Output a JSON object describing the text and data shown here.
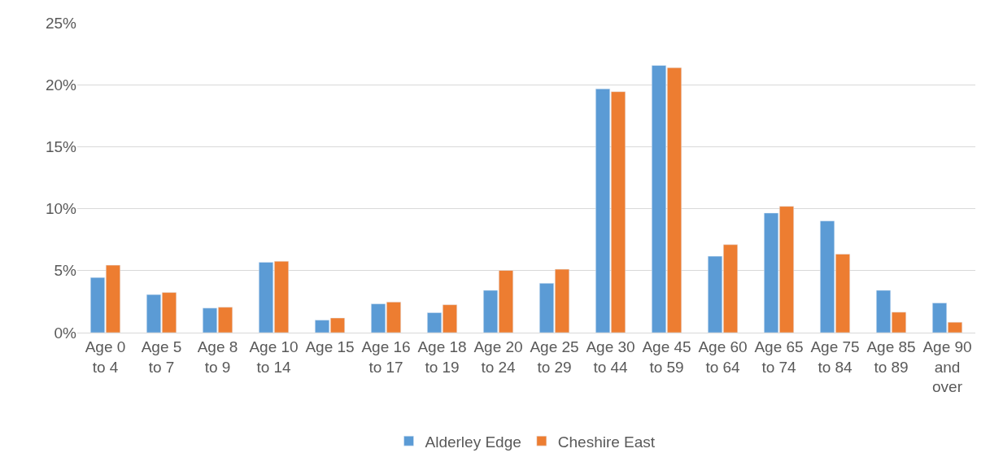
{
  "chart_data": {
    "type": "bar",
    "categories": [
      "Age 0 to 4",
      "Age 5 to 7",
      "Age 8 to 9",
      "Age 10 to 14",
      "Age 15",
      "Age 16 to 17",
      "Age 18 to 19",
      "Age 20 to 24",
      "Age 25 to 29",
      "Age 30 to 44",
      "Age 45 to 59",
      "Age 60 to 64",
      "Age 65 to 74",
      "Age 75 to 84",
      "Age 85 to 89",
      "Age 90 and over"
    ],
    "series": [
      {
        "name": "Alderley Edge",
        "color": "#5b9bd5",
        "values": [
          4.45,
          3.07,
          1.98,
          5.68,
          1.01,
          2.32,
          1.61,
          3.41,
          3.98,
          19.67,
          21.56,
          6.16,
          9.65,
          9.01,
          3.41,
          2.39
        ]
      },
      {
        "name": "Cheshire East",
        "color": "#ed7d31",
        "values": [
          5.44,
          3.24,
          2.05,
          5.76,
          1.18,
          2.47,
          2.25,
          5.02,
          5.11,
          19.44,
          21.38,
          7.1,
          10.19,
          6.34,
          1.65,
          0.84
        ]
      }
    ],
    "ylim": [
      0,
      25
    ],
    "yticks": [
      {
        "value": 0,
        "label": "0%"
      },
      {
        "value": 5,
        "label": "5%"
      },
      {
        "value": 10,
        "label": "10%"
      },
      {
        "value": 15,
        "label": "15%"
      },
      {
        "value": 20,
        "label": "20%"
      },
      {
        "value": 25,
        "label": "25%"
      }
    ],
    "grid": "y",
    "legend": "bottom"
  }
}
